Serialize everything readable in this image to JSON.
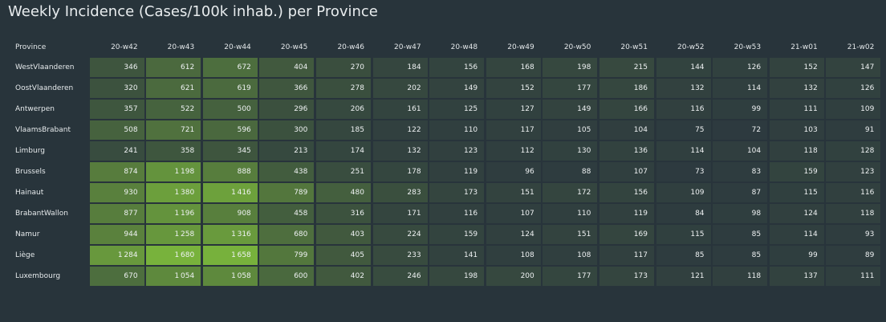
{
  "title": "Weekly Incidence (Cases/100k inhab.) per Province",
  "chart_data": {
    "type": "heatmap",
    "title": "Weekly Incidence (Cases/100k inhab.) per Province",
    "row_header": "Province",
    "columns": [
      "20-w42",
      "20-w43",
      "20-w44",
      "20-w45",
      "20-w46",
      "20-w47",
      "20-w48",
      "20-w49",
      "20-w50",
      "20-w51",
      "20-w52",
      "20-w53",
      "21-w01",
      "21-w02"
    ],
    "rows": [
      {
        "province": "WestVlaanderen",
        "values": [
          346,
          612,
          672,
          404,
          270,
          184,
          156,
          168,
          198,
          215,
          144,
          126,
          152,
          147
        ]
      },
      {
        "province": "OostVlaanderen",
        "values": [
          320,
          621,
          619,
          366,
          278,
          202,
          149,
          152,
          177,
          186,
          132,
          114,
          132,
          126
        ]
      },
      {
        "province": "Antwerpen",
        "values": [
          357,
          522,
          500,
          296,
          206,
          161,
          125,
          127,
          149,
          166,
          116,
          99,
          111,
          109
        ]
      },
      {
        "province": "VlaamsBrabant",
        "values": [
          508,
          721,
          596,
          300,
          185,
          122,
          110,
          117,
          105,
          104,
          75,
          72,
          103,
          91
        ]
      },
      {
        "province": "Limburg",
        "values": [
          241,
          358,
          345,
          213,
          174,
          132,
          123,
          112,
          130,
          136,
          114,
          104,
          118,
          128
        ]
      },
      {
        "province": "Brussels",
        "values": [
          874,
          1198,
          888,
          438,
          251,
          178,
          119,
          96,
          88,
          107,
          73,
          83,
          159,
          123
        ]
      },
      {
        "province": "Hainaut",
        "values": [
          930,
          1380,
          1416,
          789,
          480,
          283,
          173,
          151,
          172,
          156,
          109,
          87,
          115,
          116
        ]
      },
      {
        "province": "BrabantWallon",
        "values": [
          877,
          1196,
          908,
          458,
          316,
          171,
          116,
          107,
          110,
          119,
          84,
          98,
          124,
          118
        ]
      },
      {
        "province": "Namur",
        "values": [
          944,
          1258,
          1316,
          680,
          403,
          224,
          159,
          124,
          151,
          169,
          115,
          85,
          114,
          93
        ]
      },
      {
        "province": "Liège",
        "values": [
          1284,
          1680,
          1658,
          799,
          405,
          233,
          141,
          108,
          108,
          117,
          85,
          85,
          99,
          89
        ]
      },
      {
        "province": "Luxembourg",
        "values": [
          670,
          1054,
          1058,
          600,
          402,
          246,
          198,
          200,
          177,
          173,
          121,
          118,
          137,
          111
        ]
      }
    ],
    "color_low": "#2d3a3f",
    "color_high": "#78b23c"
  }
}
